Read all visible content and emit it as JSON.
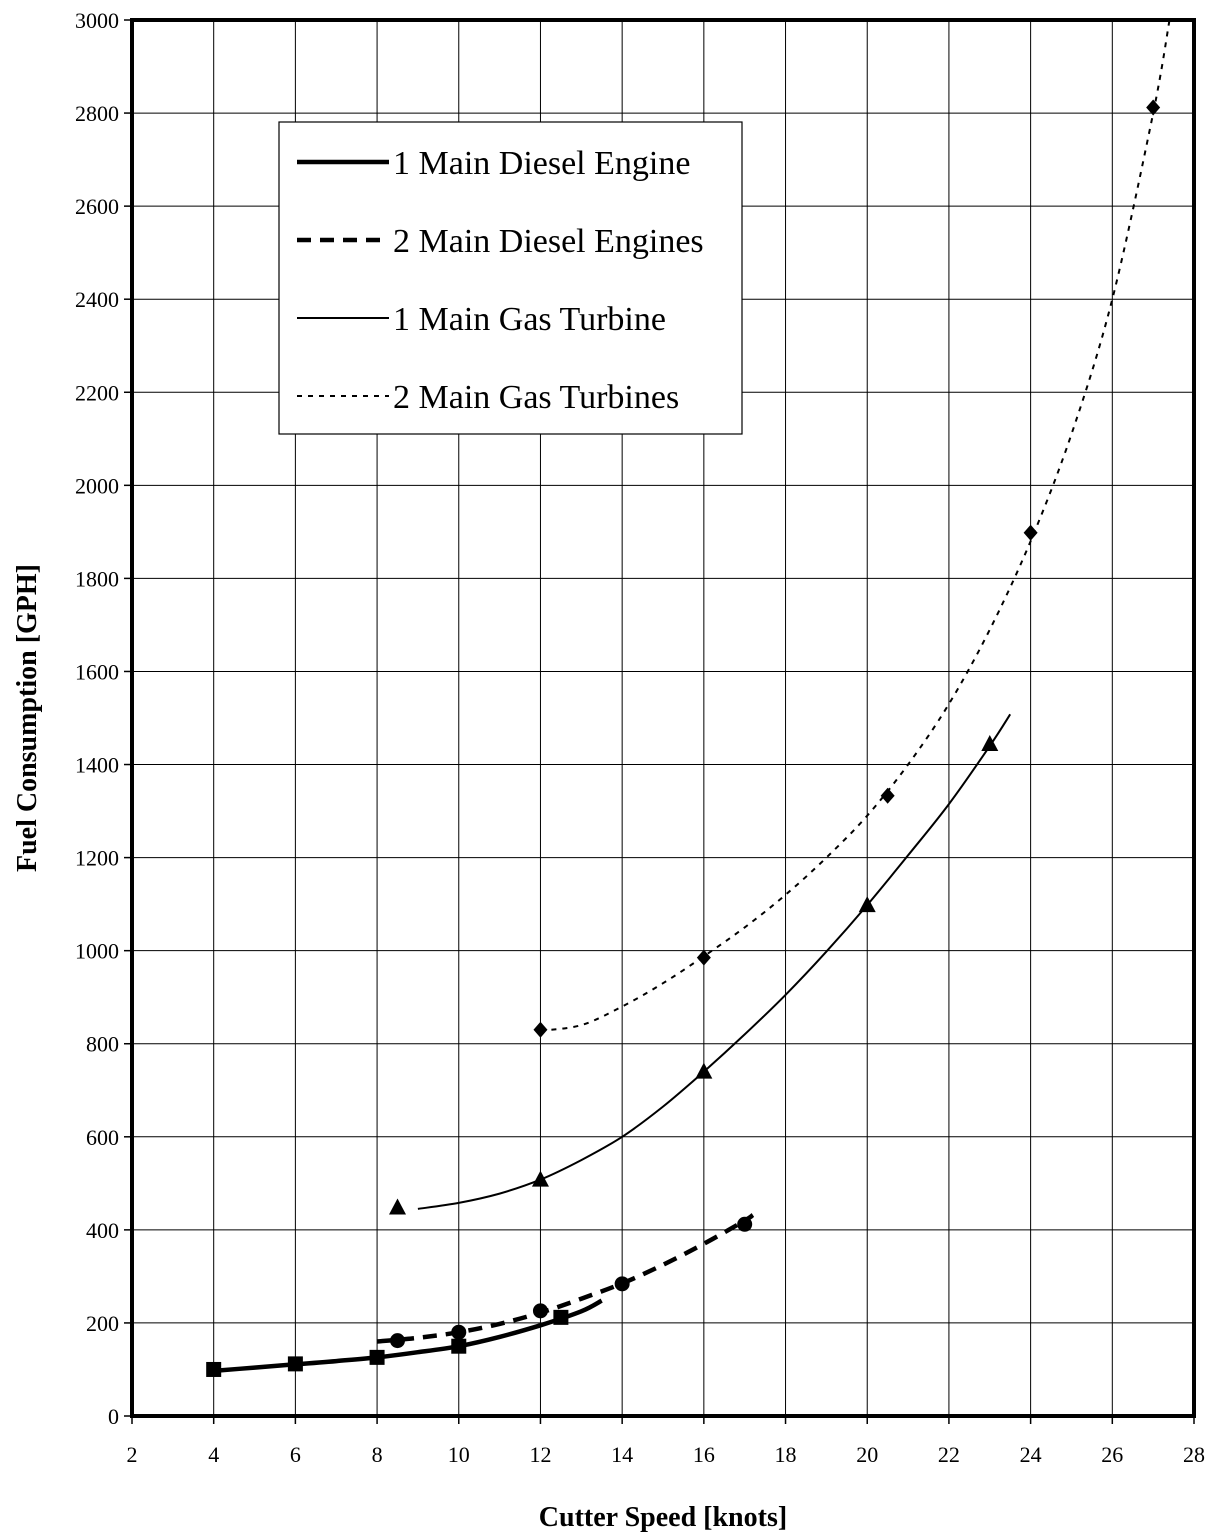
{
  "chart_data": {
    "type": "line",
    "title": "",
    "xlabel": "Cutter Speed [knots]",
    "ylabel": "Fuel Consumption [GPH]",
    "xlim": [
      2,
      28
    ],
    "ylim": [
      0,
      3000
    ],
    "xticks": [
      2,
      4,
      6,
      8,
      10,
      12,
      14,
      16,
      18,
      20,
      22,
      24,
      26,
      28
    ],
    "yticks": [
      0,
      200,
      400,
      600,
      800,
      1000,
      1200,
      1400,
      1600,
      1800,
      2000,
      2200,
      2400,
      2600,
      2800,
      3000
    ],
    "grid": true,
    "legend_position": "top-left",
    "series": [
      {
        "name": "1 Main Diesel Engine",
        "marker": "square",
        "line_style": "thick-solid",
        "points": [
          [
            4,
            100
          ],
          [
            6,
            112
          ],
          [
            8,
            126
          ],
          [
            10,
            150
          ],
          [
            12.5,
            212
          ]
        ],
        "curve": [
          [
            4,
            97
          ],
          [
            5,
            104
          ],
          [
            6,
            111
          ],
          [
            7,
            118
          ],
          [
            8,
            126
          ],
          [
            9,
            137
          ],
          [
            10,
            150
          ],
          [
            11,
            170
          ],
          [
            12,
            195
          ],
          [
            13,
            225
          ],
          [
            13.5,
            248
          ]
        ]
      },
      {
        "name": "2 Main Diesel Engines",
        "marker": "circle",
        "line_style": "thick-dashed",
        "points": [
          [
            8.5,
            162
          ],
          [
            10,
            180
          ],
          [
            12,
            226
          ],
          [
            14,
            284
          ],
          [
            17,
            412
          ]
        ],
        "curve": [
          [
            8,
            160
          ],
          [
            9,
            168
          ],
          [
            10,
            180
          ],
          [
            11,
            198
          ],
          [
            12,
            222
          ],
          [
            13,
            252
          ],
          [
            14,
            285
          ],
          [
            15,
            325
          ],
          [
            16,
            370
          ],
          [
            17,
            420
          ],
          [
            17.2,
            432
          ]
        ]
      },
      {
        "name": "1 Main Gas Turbine",
        "marker": "triangle",
        "line_style": "thin-solid",
        "points": [
          [
            8.5,
            448
          ],
          [
            12,
            508
          ],
          [
            16,
            740
          ],
          [
            20,
            1098
          ],
          [
            23,
            1444
          ]
        ],
        "curve": [
          [
            9,
            445
          ],
          [
            10,
            458
          ],
          [
            11,
            478
          ],
          [
            12,
            508
          ],
          [
            13,
            550
          ],
          [
            14,
            600
          ],
          [
            15,
            665
          ],
          [
            16,
            740
          ],
          [
            17,
            820
          ],
          [
            18,
            905
          ],
          [
            19,
            998
          ],
          [
            20,
            1098
          ],
          [
            21,
            1205
          ],
          [
            22,
            1315
          ],
          [
            23,
            1440
          ],
          [
            23.5,
            1508
          ]
        ]
      },
      {
        "name": "2 Main Gas Turbines",
        "marker": "diamond",
        "line_style": "thin-dotted",
        "points": [
          [
            12,
            830
          ],
          [
            16,
            985
          ],
          [
            20.5,
            1333
          ],
          [
            24,
            1898
          ],
          [
            27,
            2812
          ]
        ],
        "curve": [
          [
            12,
            828
          ],
          [
            13,
            840
          ],
          [
            14,
            880
          ],
          [
            15,
            930
          ],
          [
            16,
            988
          ],
          [
            17,
            1050
          ],
          [
            18,
            1120
          ],
          [
            19,
            1200
          ],
          [
            20,
            1290
          ],
          [
            21,
            1400
          ],
          [
            22,
            1530
          ],
          [
            23,
            1690
          ],
          [
            24,
            1880
          ],
          [
            25,
            2110
          ],
          [
            26,
            2400
          ],
          [
            27,
            2800
          ],
          [
            27.4,
            3000
          ]
        ]
      }
    ]
  }
}
